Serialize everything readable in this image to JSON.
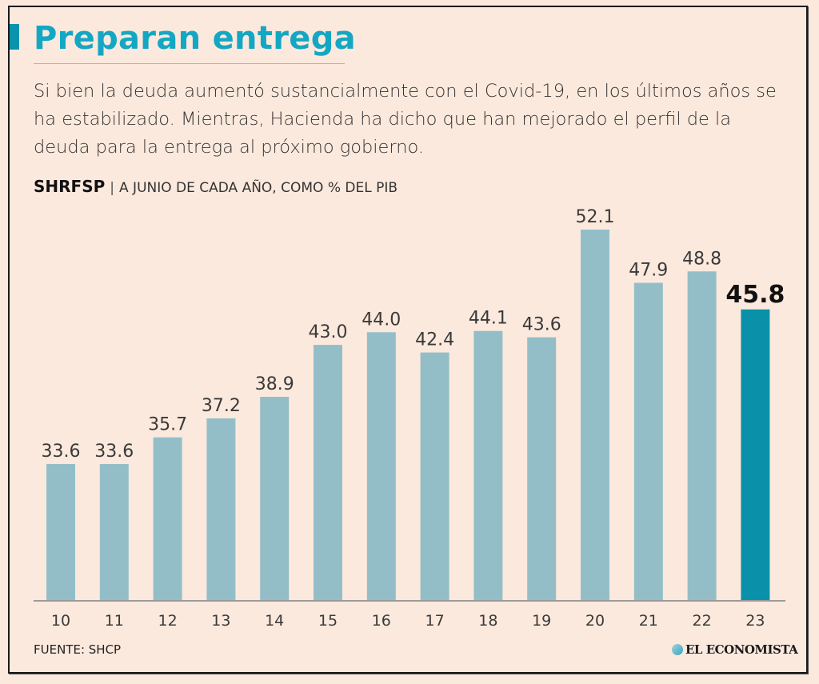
{
  "header": {
    "title": "Preparan entrega",
    "description": "Si bien la deuda aumentó sustancialmente con el Covid-19, en los últimos años se ha estabilizado. Mientras, Hacienda ha dicho que han mejorado el perfil de la deuda para la entrega al próximo gobierno.",
    "series_label": "SHRFSP",
    "series_separator": "|",
    "series_note": "A JUNIO DE CADA AÑO, COMO % DEL PIB"
  },
  "footer": {
    "source": "FUENTE: SHCP",
    "brand": "EL ECONOMISTA"
  },
  "colors": {
    "bar": "#93bec8",
    "highlight_bar": "#0a91a9",
    "title": "#14a7c4",
    "background": "#fce9dd"
  },
  "chart_data": {
    "type": "bar",
    "title": "SHRFSP",
    "subtitle": "A junio de cada año, como % del PIB",
    "xlabel": "",
    "ylabel": "% del PIB",
    "categories": [
      "10",
      "11",
      "12",
      "13",
      "14",
      "15",
      "16",
      "17",
      "18",
      "19",
      "20",
      "21",
      "22",
      "23"
    ],
    "values": [
      33.6,
      33.6,
      35.7,
      37.2,
      38.9,
      43.0,
      44.0,
      42.4,
      44.1,
      43.6,
      52.1,
      47.9,
      48.8,
      45.8
    ],
    "labels": [
      "33.6",
      "33.6",
      "35.7",
      "37.2",
      "38.9",
      "43.0",
      "44.0",
      "42.4",
      "44.1",
      "43.6",
      "52.1",
      "47.9",
      "48.8",
      "45.8"
    ],
    "highlight_index": 13,
    "ylim": [
      22.8,
      52.1
    ],
    "grid": false,
    "legend": "none",
    "source": "SHCP"
  }
}
